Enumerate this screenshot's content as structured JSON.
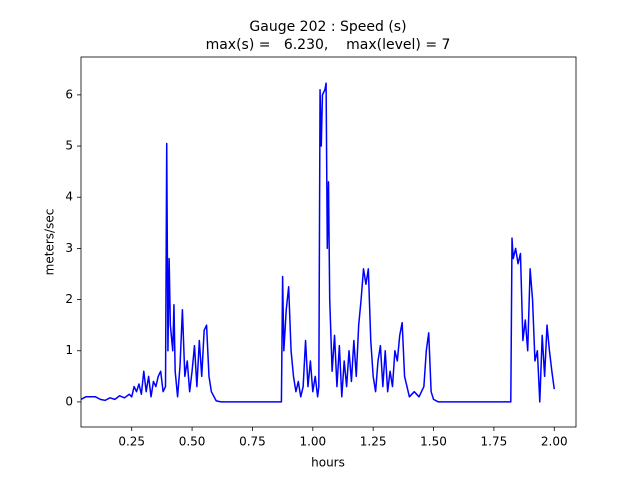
{
  "chart_data": {
    "type": "line",
    "title": "Gauge 202 : Speed (s)",
    "subtitle": "max(s) =   6.230,    max(level) = 7",
    "x_label": "hours",
    "y_label": "meters/sec",
    "xlim": [
      0.04,
      2.09
    ],
    "ylim": [
      -0.49,
      6.74
    ],
    "xticks": [
      0.25,
      {
        "value": 0.5,
        "label": "0.50"
      },
      0.75,
      {
        "value": 1.0,
        "label": "1.00"
      },
      1.25,
      {
        "value": 1.5,
        "label": "1.50"
      },
      1.75,
      {
        "value": 2.0,
        "label": "2.00"
      }
    ],
    "yticks": [
      0,
      1,
      2,
      3,
      4,
      5,
      6
    ],
    "series": [
      {
        "color": "#0000ff",
        "x": [
          0.04,
          0.06,
          0.1,
          0.12,
          0.14,
          0.16,
          0.18,
          0.2,
          0.22,
          0.24,
          0.25,
          0.26,
          0.27,
          0.28,
          0.29,
          0.3,
          0.31,
          0.32,
          0.33,
          0.34,
          0.35,
          0.36,
          0.37,
          0.38,
          0.39,
          0.395,
          0.4,
          0.405,
          0.41,
          0.42,
          0.425,
          0.43,
          0.44,
          0.45,
          0.46,
          0.47,
          0.48,
          0.49,
          0.5,
          0.51,
          0.52,
          0.53,
          0.54,
          0.55,
          0.56,
          0.57,
          0.58,
          0.6,
          0.62,
          0.87,
          0.875,
          0.88,
          0.89,
          0.9,
          0.91,
          0.92,
          0.93,
          0.94,
          0.95,
          0.96,
          0.97,
          0.98,
          0.99,
          1.0,
          1.01,
          1.02,
          1.025,
          1.03,
          1.035,
          1.04,
          1.05,
          1.055,
          1.06,
          1.065,
          1.07,
          1.08,
          1.09,
          1.1,
          1.11,
          1.12,
          1.13,
          1.14,
          1.15,
          1.16,
          1.17,
          1.18,
          1.19,
          1.2,
          1.21,
          1.22,
          1.23,
          1.24,
          1.25,
          1.26,
          1.27,
          1.28,
          1.29,
          1.3,
          1.31,
          1.32,
          1.33,
          1.34,
          1.35,
          1.36,
          1.37,
          1.38,
          1.39,
          1.4,
          1.42,
          1.44,
          1.46,
          1.47,
          1.48,
          1.49,
          1.5,
          1.52,
          1.82,
          1.825,
          1.83,
          1.84,
          1.85,
          1.86,
          1.87,
          1.88,
          1.89,
          1.9,
          1.91,
          1.92,
          1.93,
          1.94,
          1.95,
          1.96,
          1.97,
          1.98,
          1.99,
          2.0
        ],
        "values": [
          0.05,
          0.1,
          0.1,
          0.05,
          0.03,
          0.08,
          0.05,
          0.12,
          0.08,
          0.15,
          0.1,
          0.3,
          0.2,
          0.35,
          0.15,
          0.6,
          0.2,
          0.5,
          0.1,
          0.4,
          0.3,
          0.5,
          0.6,
          0.2,
          0.3,
          5.05,
          1.0,
          2.8,
          1.5,
          1.0,
          1.9,
          0.6,
          0.1,
          0.7,
          1.8,
          0.5,
          0.8,
          0.2,
          0.6,
          1.1,
          0.3,
          1.2,
          0.5,
          1.4,
          1.5,
          0.5,
          0.2,
          0.02,
          0,
          0,
          2.45,
          1.0,
          1.8,
          2.25,
          1.0,
          0.5,
          0.2,
          0.4,
          0.1,
          0.3,
          1.2,
          0.3,
          0.8,
          0.2,
          0.5,
          0.1,
          0.3,
          6.1,
          5.0,
          6.0,
          6.1,
          6.23,
          3.0,
          4.3,
          2.0,
          0.6,
          1.3,
          0.3,
          1.1,
          0.1,
          0.8,
          0.3,
          1.0,
          0.4,
          1.2,
          0.5,
          1.5,
          2.0,
          2.6,
          2.3,
          2.6,
          1.2,
          0.5,
          0.2,
          0.8,
          1.1,
          0.3,
          1.0,
          0.2,
          0.6,
          0.3,
          1.0,
          0.8,
          1.3,
          1.55,
          0.5,
          0.3,
          0.1,
          0.2,
          0.1,
          0.3,
          1.0,
          1.35,
          0.2,
          0.05,
          0,
          0,
          3.2,
          2.8,
          3.0,
          2.7,
          2.9,
          1.2,
          1.6,
          1.0,
          2.6,
          2.0,
          0.8,
          1.0,
          0.0,
          1.3,
          0.5,
          1.5,
          1.0,
          0.6,
          0.25
        ]
      }
    ]
  }
}
